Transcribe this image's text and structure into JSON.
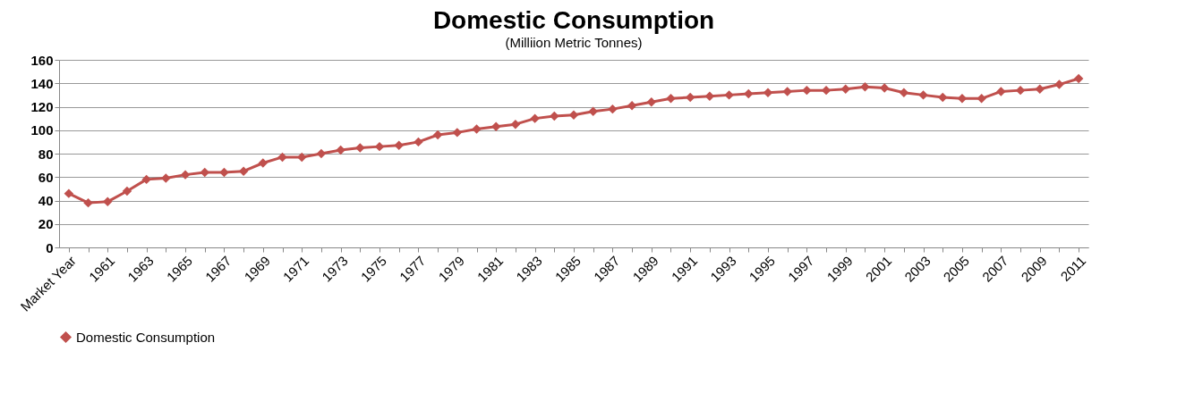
{
  "chart_data": {
    "type": "line",
    "title": "Domestic Consumption",
    "subtitle": "(Milliion Metric Tonnes)",
    "categories": [
      "Market Year",
      null,
      "1961",
      null,
      "1963",
      null,
      "1965",
      null,
      "1967",
      null,
      "1969",
      null,
      "1971",
      null,
      "1973",
      null,
      "1975",
      null,
      "1977",
      null,
      "1979",
      null,
      "1981",
      null,
      "1983",
      null,
      "1985",
      null,
      "1987",
      null,
      "1989",
      null,
      "1991",
      null,
      "1993",
      null,
      "1995",
      null,
      "1997",
      null,
      "1999",
      null,
      "2001",
      null,
      "2003",
      null,
      "2005",
      null,
      "2007",
      null,
      "2009",
      null,
      "2011"
    ],
    "series": [
      {
        "name": "Domestic Consumption",
        "color": "#c0504d",
        "values": [
          46,
          38,
          39,
          48,
          58,
          59,
          62,
          64,
          64,
          65,
          72,
          77,
          77,
          80,
          83,
          85,
          86,
          87,
          90,
          96,
          98,
          101,
          103,
          105,
          110,
          112,
          113,
          116,
          118,
          121,
          124,
          127,
          128,
          129,
          130,
          131,
          132,
          133,
          134,
          134,
          135,
          137,
          136,
          132,
          130,
          128,
          127,
          127,
          133,
          134,
          135,
          139,
          144
        ]
      }
    ],
    "ylim": [
      0,
      160
    ],
    "yticks": [
      0,
      20,
      40,
      60,
      80,
      100,
      120,
      140,
      160
    ],
    "grid": "y",
    "legend": "bottom",
    "marker": "diamond",
    "line_style": "solid"
  }
}
